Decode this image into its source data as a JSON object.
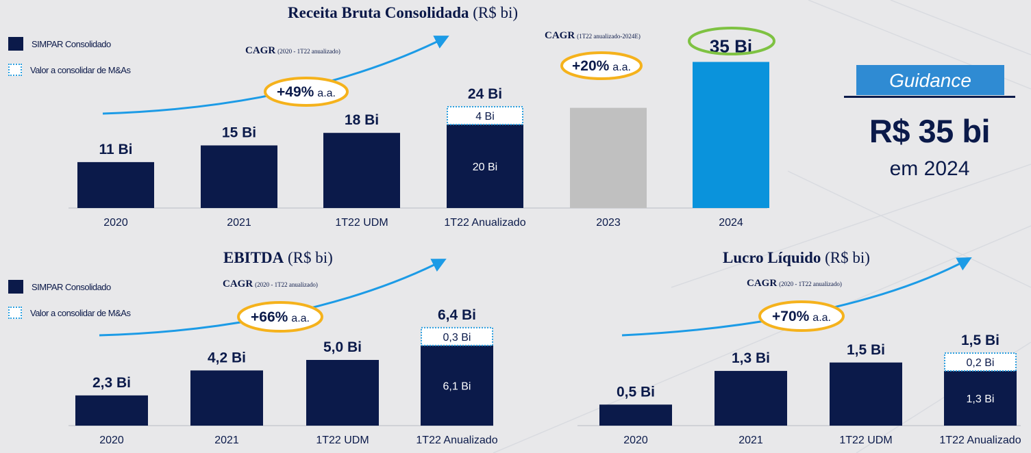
{
  "legend": {
    "solid_label": "SIMPAR Consolidado",
    "dashed_label": "Valor a consolidar de M&As"
  },
  "guidance": {
    "tag": "Guidance",
    "value": "R$ 35 bi",
    "subtitle": "em 2024"
  },
  "colors": {
    "navy": "#0b1a4a",
    "gray": "#c0c0c0",
    "blue": "#0a93dc",
    "orange": "#f5b21c",
    "green": "#7ec242",
    "arrow": "#1c9be6"
  },
  "chart_data": [
    {
      "type": "bar",
      "title_bold": "Receita Bruta Consolidada",
      "title_unit": "(R$ bi)",
      "categories": [
        "2020",
        "2021",
        "1T22 UDM",
        "1T22 Anualizado",
        "2023",
        "2024"
      ],
      "series": [
        {
          "name": "SIMPAR Consolidado",
          "values": [
            11,
            15,
            18,
            20,
            24,
            35
          ]
        },
        {
          "name": "Valor a consolidar de M&As",
          "values": [
            0,
            0,
            0,
            4,
            0,
            0
          ]
        }
      ],
      "total_labels": [
        "11 Bi",
        "15 Bi",
        "18 Bi",
        "24 Bi",
        "",
        "35 Bi"
      ],
      "segment_labels": [
        "",
        "",
        "",
        "20 Bi",
        "",
        ""
      ],
      "addon_labels": [
        "",
        "",
        "",
        "4 Bi",
        "",
        ""
      ],
      "bar_colors": [
        "navy",
        "navy",
        "navy",
        "navy",
        "gray",
        "blue"
      ],
      "cagr": [
        {
          "label": "CAGR",
          "period": "(2020 - 1T22 anualizado)",
          "value": "+49%",
          "unit": "a.a."
        },
        {
          "label": "CAGR",
          "period": "(1T22 anualizado-2024E)",
          "value": "+20%",
          "unit": "a.a."
        }
      ]
    },
    {
      "type": "bar",
      "title_bold": "EBITDA",
      "title_unit": "(R$ bi)",
      "categories": [
        "2020",
        "2021",
        "1T22 UDM",
        "1T22 Anualizado"
      ],
      "series": [
        {
          "name": "SIMPAR Consolidado",
          "values": [
            2.3,
            4.2,
            5.0,
            6.1
          ]
        },
        {
          "name": "Valor a consolidar de M&As",
          "values": [
            0,
            0,
            0,
            0.3
          ]
        }
      ],
      "total_labels": [
        "2,3 Bi",
        "4,2 Bi",
        "5,0 Bi",
        "6,4 Bi"
      ],
      "segment_labels": [
        "",
        "",
        "",
        "6,1 Bi"
      ],
      "addon_labels": [
        "",
        "",
        "",
        "0,3 Bi"
      ],
      "cagr": [
        {
          "label": "CAGR",
          "period": "(2020 - 1T22 anualizado)",
          "value": "+66%",
          "unit": "a.a."
        }
      ]
    },
    {
      "type": "bar",
      "title_bold": "Lucro Líquido",
      "title_unit": "(R$ bi)",
      "categories": [
        "2020",
        "2021",
        "1T22 UDM",
        "1T22 Anualizado"
      ],
      "series": [
        {
          "name": "SIMPAR Consolidado",
          "values": [
            0.5,
            1.3,
            1.5,
            1.3
          ]
        },
        {
          "name": "Valor a consolidar de M&As",
          "values": [
            0,
            0,
            0,
            0.2
          ]
        }
      ],
      "total_labels": [
        "0,5 Bi",
        "1,3 Bi",
        "1,5 Bi",
        "1,5 Bi"
      ],
      "segment_labels": [
        "",
        "",
        "",
        "1,3 Bi"
      ],
      "addon_labels": [
        "",
        "",
        "",
        "0,2 Bi"
      ],
      "cagr": [
        {
          "label": "CAGR",
          "period": "(2020 - 1T22 anualizado)",
          "value": "+70%",
          "unit": "a.a."
        }
      ]
    }
  ]
}
